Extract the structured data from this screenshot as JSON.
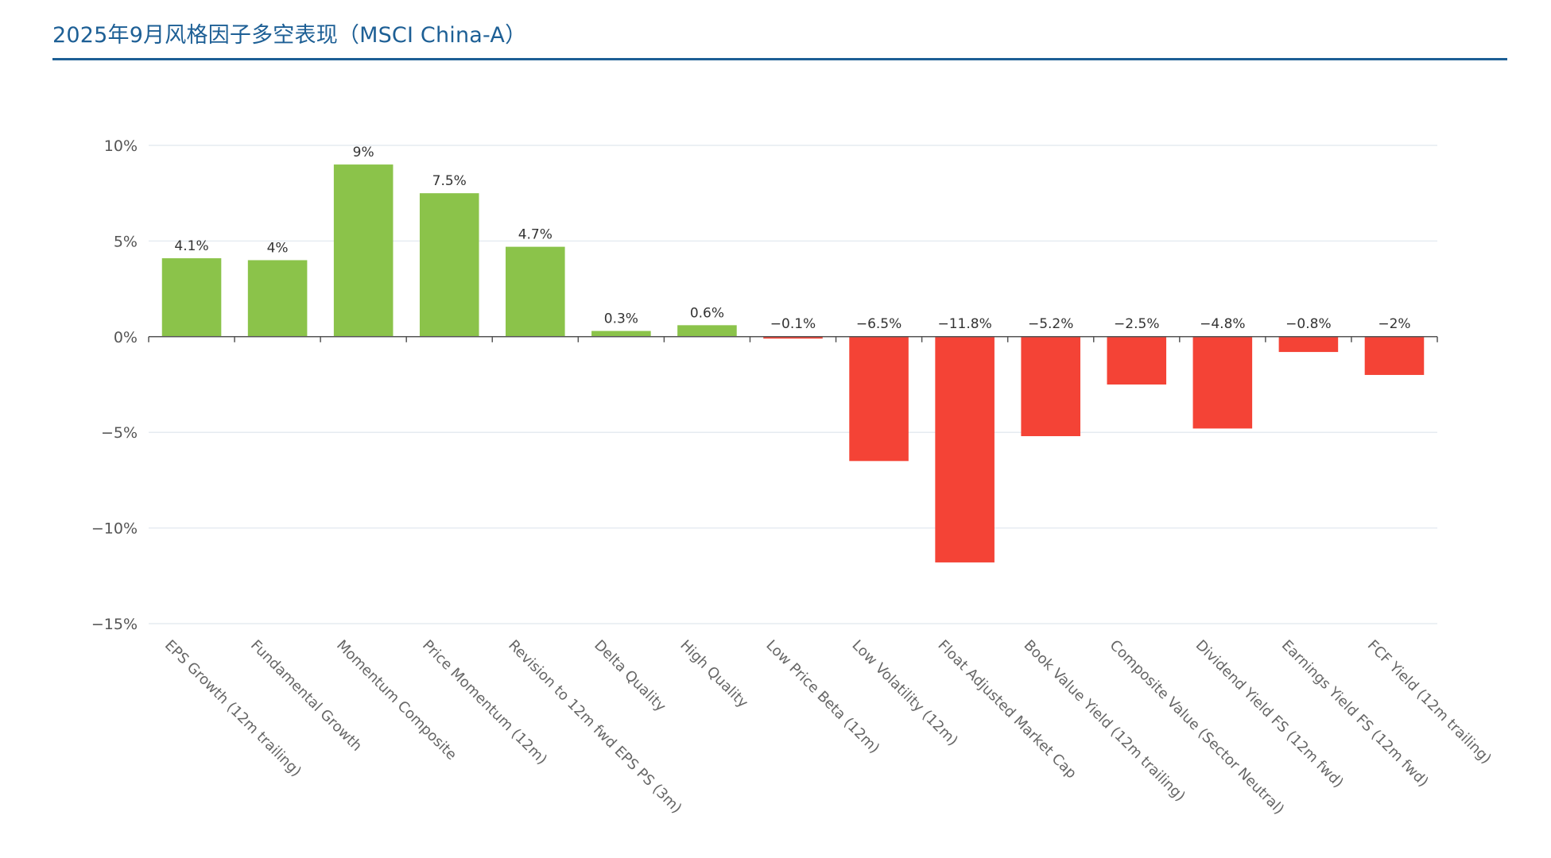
{
  "title": "2025年9月风格因子多空表现（MSCI China-A）",
  "colors": {
    "title": "#1d5f95",
    "positive": "#8bc34a",
    "negative": "#f44336",
    "grid": "#e6ebf1",
    "axis": "#555555"
  },
  "chart_data": {
    "type": "bar",
    "title": "",
    "xlabel": "",
    "ylabel": "",
    "unit": "%",
    "ylim": [
      -15,
      10
    ],
    "yticks": [
      10,
      5,
      0,
      -5,
      -10,
      -15
    ],
    "ytick_labels": [
      "10%",
      "5%",
      "0%",
      "−5%",
      "−10%",
      "−15%"
    ],
    "grid": true,
    "categories": [
      "EPS Growth (12m trailing)",
      "Fundamental Growth",
      "Momentum Composite",
      "Price Momentum (12m)",
      "Revision to 12m fwd EPS PS (3m)",
      "Delta Quality",
      "High Quality",
      "Low Price Beta (12m)",
      "Low Volatility (12m)",
      "Float Adjusted Market Cap",
      "Book Value Yield (12m trailing)",
      "Composite Value (Sector Neutral)",
      "Dividend Yield FS (12m fwd)",
      "Earnings Yield FS (12m fwd)",
      "FCF Yield (12m trailing)"
    ],
    "values": [
      4.1,
      4,
      9,
      7.5,
      4.7,
      0.3,
      0.6,
      -0.1,
      -6.5,
      -11.8,
      -5.2,
      -2.5,
      -4.8,
      -0.8,
      -2
    ],
    "value_labels": [
      "4.1%",
      "4%",
      "9%",
      "7.5%",
      "4.7%",
      "0.3%",
      "0.6%",
      "−0.1%",
      "−6.5%",
      "−11.8%",
      "−5.2%",
      "−2.5%",
      "−4.8%",
      "−0.8%",
      "−2%"
    ]
  }
}
